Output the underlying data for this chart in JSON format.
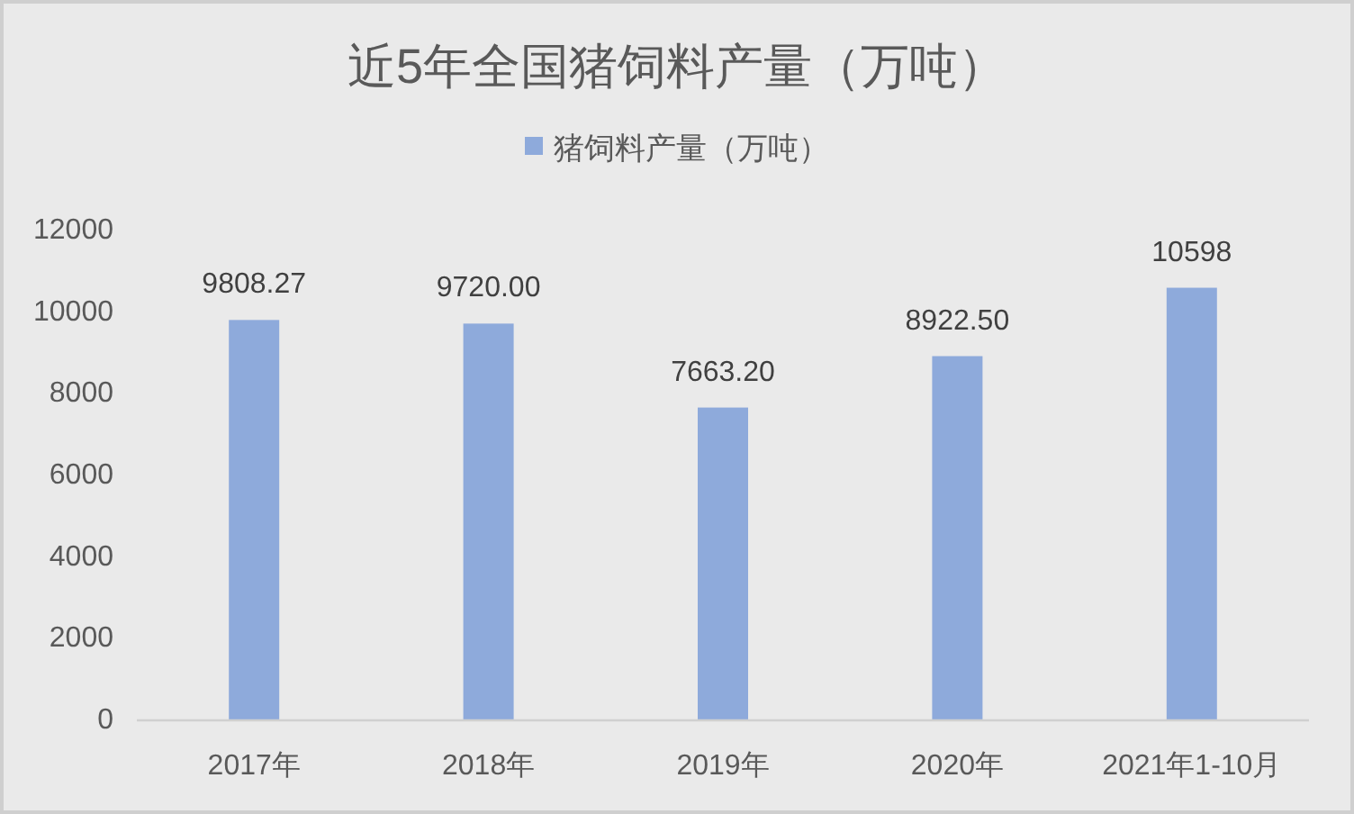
{
  "chart_data": {
    "type": "bar",
    "title": "近5年全国猪饲料产量（万吨）",
    "categories": [
      "2017年",
      "2018年",
      "2019年",
      "2020年",
      "2021年1-10月"
    ],
    "series": [
      {
        "name": "猪饲料产量（万吨）",
        "color": "#8eaadb",
        "values": [
          9808.27,
          9720.0,
          7663.2,
          8922.5,
          10598
        ],
        "value_labels": [
          "9808.27",
          "9720.00",
          "7663.20",
          "8922.50",
          "10598"
        ]
      }
    ],
    "ylim": [
      0,
      12000
    ],
    "yticks": [
      0,
      2000,
      4000,
      6000,
      8000,
      10000,
      12000
    ],
    "legend": "top"
  }
}
